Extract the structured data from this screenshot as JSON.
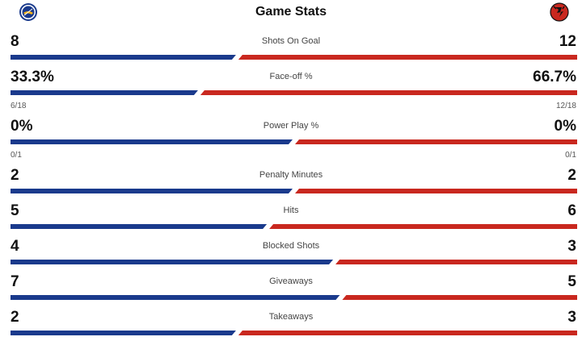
{
  "header": {
    "title": "Game Stats",
    "away_logo_icon": "sabres-logo-icon",
    "home_logo_icon": "devils-logo-icon"
  },
  "colors": {
    "away": "#1a3a8c",
    "home": "#c9281f"
  },
  "stats": [
    {
      "label": "Shots On Goal",
      "away": "8",
      "home": "12",
      "away_share": 0.4
    },
    {
      "label": "Face-off %",
      "away": "33.3%",
      "home": "66.7%",
      "away_share": 0.333,
      "away_detail": "6/18",
      "home_detail": "12/18"
    },
    {
      "label": "Power Play %",
      "away": "0%",
      "home": "0%",
      "away_share": 0.5,
      "away_detail": "0/1",
      "home_detail": "0/1"
    },
    {
      "label": "Penalty Minutes",
      "away": "2",
      "home": "2",
      "away_share": 0.5
    },
    {
      "label": "Hits",
      "away": "5",
      "home": "6",
      "away_share": 0.4545
    },
    {
      "label": "Blocked Shots",
      "away": "4",
      "home": "3",
      "away_share": 0.5714
    },
    {
      "label": "Giveaways",
      "away": "7",
      "home": "5",
      "away_share": 0.5833
    },
    {
      "label": "Takeaways",
      "away": "2",
      "home": "3",
      "away_share": 0.4
    }
  ]
}
